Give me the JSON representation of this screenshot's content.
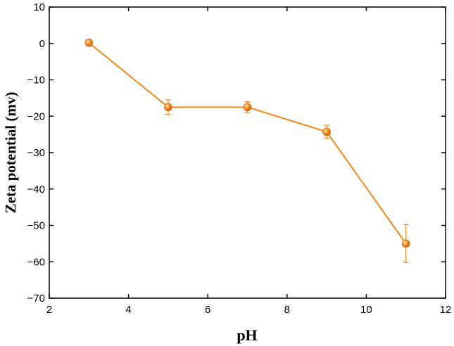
{
  "chart_data": {
    "type": "line",
    "xlabel": "pH",
    "ylabel": "Zeta potential (mv)",
    "xlim": [
      2,
      12
    ],
    "ylim": [
      -70,
      10
    ],
    "xticks": [
      2,
      4,
      6,
      8,
      10,
      12
    ],
    "yticks": [
      10,
      0,
      -10,
      -20,
      -30,
      -40,
      -50,
      -60,
      -70
    ],
    "grid": false,
    "legend": "none",
    "series": [
      {
        "color": "#f28a1e",
        "marker": "circle",
        "x": [
          3,
          5,
          7,
          9,
          11
        ],
        "y": [
          0.2,
          -17.5,
          -17.5,
          -24.3,
          -55.0
        ],
        "error": [
          0.3,
          2.0,
          1.5,
          1.8,
          5.2
        ]
      }
    ]
  }
}
